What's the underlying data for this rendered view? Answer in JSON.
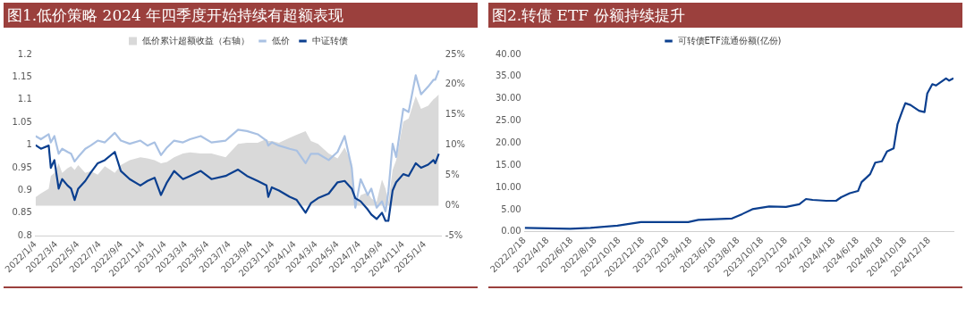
{
  "chart_data": [
    {
      "type": "line",
      "title": "图1.低价策略 2024 年四季度开始持续有超额表现",
      "legend": "top",
      "x": [
        "2022-01-04",
        "2022-01-19",
        "2022-02-10",
        "2022-02-16",
        "2022-02-26",
        "2022-03-10",
        "2022-03-20",
        "2022-04-04",
        "2022-04-14",
        "2022-04-24",
        "2022-05-04",
        "2022-05-24",
        "2022-06-08",
        "2022-06-28",
        "2022-07-18",
        "2022-08-15",
        "2022-09-01",
        "2022-09-26",
        "2022-10-26",
        "2022-11-15",
        "2022-12-05",
        "2022-12-23",
        "2023-01-09",
        "2023-01-29",
        "2023-02-23",
        "2023-03-15",
        "2023-04-14",
        "2023-05-14",
        "2023-06-23",
        "2023-07-28",
        "2023-08-22",
        "2023-09-21",
        "2023-10-16",
        "2023-10-21",
        "2023-10-31",
        "2023-11-20",
        "2023-12-20",
        "2024-01-09",
        "2024-02-03",
        "2024-02-18",
        "2024-03-09",
        "2024-04-08",
        "2024-05-03",
        "2024-05-23",
        "2024-06-12",
        "2024-06-22",
        "2024-07-07",
        "2024-07-27",
        "2024-08-06",
        "2024-08-21",
        "2024-09-05",
        "2024-09-15",
        "2024-09-23",
        "2024-10-05",
        "2024-10-15",
        "2024-11-04",
        "2024-11-19",
        "2024-12-09",
        "2024-12-24",
        "2025-01-13",
        "2025-01-28",
        "2025-02-02",
        "2025-02-12"
      ],
      "series": [
        {
          "name": "低价累计超额收益（右轴）",
          "type": "area",
          "axis": "y2",
          "color": "#d9d9d9",
          "values": [
            1.4,
            2.0,
            2.8,
            4.9,
            5.4,
            7.0,
            5.4,
            6.2,
            6.5,
            5.9,
            6.7,
            5.4,
            5.7,
            5.1,
            6.5,
            5.4,
            6.7,
            7.5,
            8.0,
            7.8,
            7.5,
            7.0,
            7.2,
            8.0,
            8.6,
            8.8,
            8.6,
            8.6,
            8.0,
            10.2,
            10.4,
            10.4,
            11.0,
            10.7,
            10.7,
            10.4,
            11.2,
            11.7,
            12.3,
            10.7,
            10.2,
            8.6,
            7.8,
            9.6,
            7.0,
            -0.2,
            1.7,
            2.2,
            1.2,
            0.6,
            4.3,
            2.8,
            0.6,
            5.9,
            7.5,
            13.9,
            14.4,
            18.1,
            16.0,
            16.5,
            17.6,
            17.8,
            18.4
          ]
        },
        {
          "name": "低价",
          "color": "#a9c1e3",
          "values": [
            1.02,
            1.013,
            1.024,
            1.006,
            1.02,
            0.981,
            0.992,
            0.985,
            0.981,
            0.964,
            0.974,
            0.992,
            0.999,
            1.01,
            1.006,
            1.027,
            1.01,
            1.003,
            1.01,
            0.999,
            1.006,
            0.978,
            0.995,
            1.01,
            1.006,
            1.013,
            1.02,
            1.006,
            1.01,
            1.034,
            1.031,
            1.024,
            1.01,
            0.999,
            1.006,
            0.999,
            0.992,
            0.988,
            0.96,
            0.981,
            0.981,
            0.967,
            0.985,
            1.02,
            0.95,
            0.862,
            0.925,
            0.89,
            0.904,
            0.862,
            0.876,
            0.854,
            0.897,
            1.003,
            0.974,
            1.08,
            1.073,
            1.154,
            1.112,
            1.129,
            1.144,
            1.144,
            1.165
          ]
        },
        {
          "name": "中证转债",
          "color": "#0b3f8f",
          "values": [
            1.0,
            0.992,
            0.999,
            0.95,
            0.967,
            0.904,
            0.925,
            0.911,
            0.904,
            0.879,
            0.904,
            0.921,
            0.939,
            0.96,
            0.967,
            0.985,
            0.943,
            0.925,
            0.911,
            0.921,
            0.928,
            0.89,
            0.918,
            0.943,
            0.925,
            0.932,
            0.943,
            0.925,
            0.932,
            0.946,
            0.932,
            0.921,
            0.911,
            0.886,
            0.907,
            0.9,
            0.886,
            0.879,
            0.851,
            0.872,
            0.883,
            0.893,
            0.918,
            0.921,
            0.904,
            0.883,
            0.876,
            0.858,
            0.847,
            0.837,
            0.851,
            0.833,
            0.833,
            0.9,
            0.918,
            0.936,
            0.932,
            0.96,
            0.95,
            0.957,
            0.967,
            0.96,
            0.981
          ]
        }
      ],
      "xlim": [
        "2022-01-04",
        "2025-02-20"
      ],
      "xticks": [
        {
          "value": "2022-01-04",
          "label": "2022/1/4"
        },
        {
          "value": "2022-03-04",
          "label": "2022/3/4"
        },
        {
          "value": "2022-05-04",
          "label": "2022/5/4"
        },
        {
          "value": "2022-07-04",
          "label": "2022/7/4"
        },
        {
          "value": "2022-09-04",
          "label": "2022/9/4"
        },
        {
          "value": "2022-11-04",
          "label": "2022/11/4"
        },
        {
          "value": "2023-01-04",
          "label": "2023/1/4"
        },
        {
          "value": "2023-03-04",
          "label": "2023/3/4"
        },
        {
          "value": "2023-05-04",
          "label": "2023/5/4"
        },
        {
          "value": "2023-07-04",
          "label": "2023/7/4"
        },
        {
          "value": "2023-09-04",
          "label": "2023/9/4"
        },
        {
          "value": "2023-11-04",
          "label": "2023/11/4"
        },
        {
          "value": "2024-01-04",
          "label": "2024/1/4"
        },
        {
          "value": "2024-03-04",
          "label": "2024/3/4"
        },
        {
          "value": "2024-05-04",
          "label": "2024/5/4"
        },
        {
          "value": "2024-07-04",
          "label": "2024/7/4"
        },
        {
          "value": "2024-09-04",
          "label": "2024/9/4"
        },
        {
          "value": "2024-11-04",
          "label": "2024/11/4"
        },
        {
          "value": "2025-01-04",
          "label": "2025/1/4"
        }
      ],
      "ylim": [
        0.8,
        1.2
      ],
      "yticks": [
        0.8,
        0.85,
        0.9,
        0.95,
        1,
        1.05,
        1.1,
        1.15,
        1.2
      ],
      "y2lim": [
        -5,
        25
      ],
      "y2ticks": [
        {
          "value": -5,
          "label": "-5%"
        },
        {
          "value": 0,
          "label": "0%"
        },
        {
          "value": 5,
          "label": "5%"
        },
        {
          "value": 10,
          "label": "10%"
        },
        {
          "value": 15,
          "label": "15%"
        },
        {
          "value": 20,
          "label": "20%"
        },
        {
          "value": 25,
          "label": "25%"
        }
      ]
    },
    {
      "type": "line",
      "title": "图2.转债 ETF 份额持续提升",
      "legend": "top",
      "x": [
        "2022-02-18",
        "2022-06-14",
        "2022-08-05",
        "2022-10-13",
        "2022-12-12",
        "2022-12-30",
        "2023-04-12",
        "2023-05-08",
        "2023-08-02",
        "2023-08-28",
        "2023-09-23",
        "2023-11-05",
        "2023-12-18",
        "2024-01-21",
        "2024-02-07",
        "2024-02-24",
        "2024-03-30",
        "2024-04-24",
        "2024-05-07",
        "2024-05-29",
        "2024-06-19",
        "2024-06-28",
        "2024-07-20",
        "2024-08-02",
        "2024-08-19",
        "2024-09-01",
        "2024-09-18",
        "2024-09-28",
        "2024-10-10",
        "2024-10-18",
        "2024-10-31",
        "2024-11-22",
        "2024-12-06",
        "2024-12-13",
        "2024-12-26",
        "2025-01-04",
        "2025-01-30",
        "2025-02-07",
        "2025-02-18"
      ],
      "series": [
        {
          "name": "可转债ETF流通份额(亿份)",
          "color": "#0b3f8f",
          "values": [
            0.9,
            0.7,
            0.9,
            1.4,
            2.2,
            2.2,
            2.2,
            2.7,
            3.0,
            4.0,
            5.1,
            5.7,
            5.6,
            6.2,
            7.4,
            7.2,
            7.0,
            7.0,
            7.8,
            8.7,
            9.2,
            11.2,
            13.0,
            15.6,
            15.9,
            18.1,
            18.8,
            24.3,
            27.2,
            29.0,
            28.6,
            27.3,
            27.0,
            31.2,
            33.3,
            33.0,
            34.6,
            34.1,
            34.6
          ]
        }
      ],
      "xlim": [
        "2022-02-18",
        "2025-02-18"
      ],
      "xticks": [
        {
          "value": "2022-02-18",
          "label": "2022/2/18"
        },
        {
          "value": "2022-04-18",
          "label": "2022/4/18"
        },
        {
          "value": "2022-06-18",
          "label": "2022/6/18"
        },
        {
          "value": "2022-08-18",
          "label": "2022/8/18"
        },
        {
          "value": "2022-10-18",
          "label": "2022/10/18"
        },
        {
          "value": "2022-12-18",
          "label": "2022/12/18"
        },
        {
          "value": "2023-02-18",
          "label": "2023/2/18"
        },
        {
          "value": "2023-04-18",
          "label": "2023/4/18"
        },
        {
          "value": "2023-06-18",
          "label": "2023/6/18"
        },
        {
          "value": "2023-08-18",
          "label": "2023/8/18"
        },
        {
          "value": "2023-10-18",
          "label": "2023/10/18"
        },
        {
          "value": "2023-12-18",
          "label": "2023/12/18"
        },
        {
          "value": "2024-02-18",
          "label": "2024/2/18"
        },
        {
          "value": "2024-04-18",
          "label": "2024/4/18"
        },
        {
          "value": "2024-06-18",
          "label": "2024/6/18"
        },
        {
          "value": "2024-08-18",
          "label": "2024/8/18"
        },
        {
          "value": "2024-10-18",
          "label": "2024/10/18"
        },
        {
          "value": "2024-12-18",
          "label": "2024/12/18"
        }
      ],
      "ylim": [
        0,
        40
      ],
      "yticks": [
        {
          "value": 0,
          "label": "0.00"
        },
        {
          "value": 5,
          "label": "5.00"
        },
        {
          "value": 10,
          "label": "10.00"
        },
        {
          "value": 15,
          "label": "15.00"
        },
        {
          "value": 20,
          "label": "20.00"
        },
        {
          "value": 25,
          "label": "25.00"
        },
        {
          "value": 30,
          "label": "30.00"
        },
        {
          "value": 35,
          "label": "35.00"
        },
        {
          "value": 40,
          "label": "40.00"
        }
      ]
    }
  ]
}
